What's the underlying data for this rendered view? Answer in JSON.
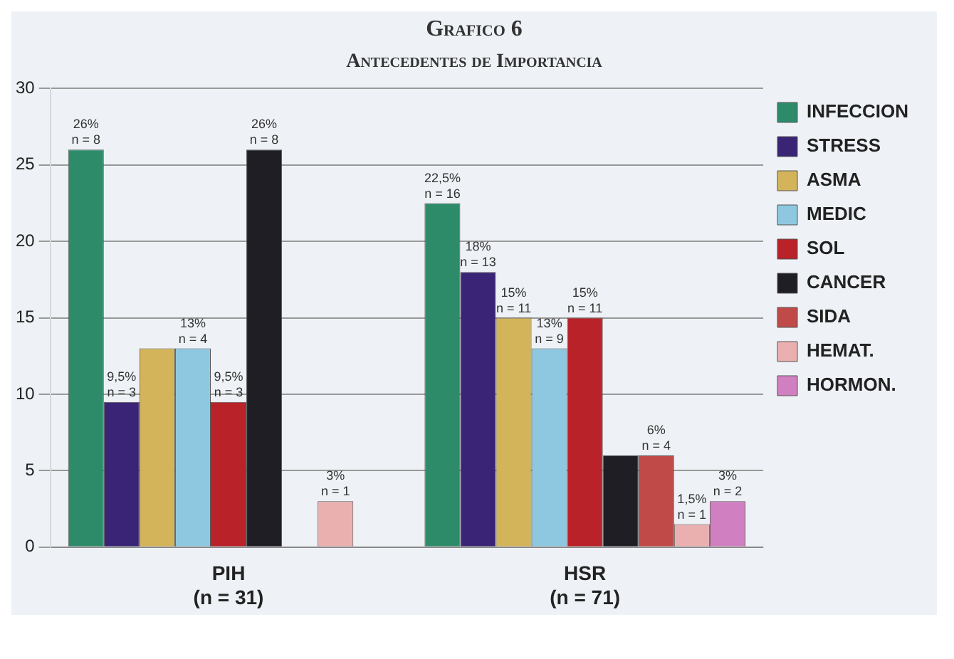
{
  "chart_data": {
    "type": "bar",
    "title": "Grafico 6",
    "subtitle": "Antecedentes de Importancia",
    "categories": [
      "PIH\n(n = 31)",
      "HSR\n(n = 71)"
    ],
    "series": [
      {
        "name": "INFECCION",
        "color": "#2e8b6a",
        "values": [
          26,
          22.5
        ],
        "value_labels": [
          "26%\nn = 8",
          "22,5%\nn = 16"
        ]
      },
      {
        "name": "STRESS",
        "color": "#3a2475",
        "values": [
          9.5,
          18
        ],
        "value_labels": [
          "9,5%\nn = 3",
          "18%\nn = 13"
        ]
      },
      {
        "name": "ASMA",
        "color": "#d4b45a",
        "values": [
          13,
          15
        ],
        "value_labels": [
          null,
          "15%\nn = 11"
        ]
      },
      {
        "name": "MEDIC",
        "color": "#8ec8e0",
        "values": [
          13,
          13
        ],
        "value_labels": [
          "13%\nn = 4",
          "13%\nn = 9"
        ]
      },
      {
        "name": "SOL",
        "color": "#b82228",
        "values": [
          9.5,
          15
        ],
        "value_labels": [
          "9,5%\nn = 3",
          "15%\nn = 11"
        ]
      },
      {
        "name": "CANCER",
        "color": "#1e1e24",
        "values": [
          26,
          6
        ],
        "value_labels": [
          "26%\nn = 8",
          null
        ]
      },
      {
        "name": "SIDA",
        "color": "#c04a48",
        "values": [
          null,
          6
        ],
        "value_labels": [
          null,
          "6%\nn = 4"
        ]
      },
      {
        "name": "HEMAT.",
        "color": "#eab0b0",
        "values": [
          3,
          1.5
        ],
        "value_labels": [
          "3%\nn = 1",
          "1,5%\nn = 1"
        ]
      },
      {
        "name": "HORMON.",
        "color": "#d080c0",
        "values": [
          null,
          3
        ],
        "value_labels": [
          null,
          "3%\nn = 2"
        ]
      }
    ],
    "ylim": [
      0,
      30
    ],
    "yticks": [
      0,
      5,
      10,
      15,
      20,
      25,
      30
    ],
    "grid": "y",
    "legend": "top right"
  }
}
